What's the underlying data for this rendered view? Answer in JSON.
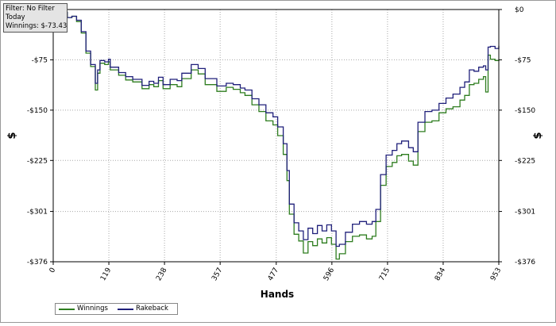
{
  "info": {
    "filter": "Filter: No Filter",
    "period": "Today",
    "winnings": "Winnings: $-73.43"
  },
  "chart_data": {
    "type": "line",
    "xlabel": "Hands",
    "ylabel_left": "$",
    "ylabel_right": "$",
    "xlim": [
      0,
      953
    ],
    "ylim": [
      -376,
      0
    ],
    "x_ticks": [
      0,
      119,
      238,
      357,
      477,
      596,
      715,
      834,
      953
    ],
    "y_ticks": [
      0,
      -75,
      -150,
      -225,
      -301,
      -376
    ],
    "y_tick_labels_left": [
      "-$75",
      "-$150",
      "-$225",
      "-$301",
      "-$376"
    ],
    "y_tick_labels_right": [
      "$0",
      "-$75",
      "-$150",
      "-$225",
      "-$301",
      "-$376"
    ],
    "grid": true,
    "legend_position": "bottom-left",
    "series": [
      {
        "name": "Winnings",
        "color": "#2e7d1f",
        "points": [
          [
            0,
            -3
          ],
          [
            10,
            -2
          ],
          [
            20,
            -4
          ],
          [
            30,
            -12
          ],
          [
            40,
            -10
          ],
          [
            50,
            -18
          ],
          [
            60,
            -35
          ],
          [
            70,
            -65
          ],
          [
            80,
            -85
          ],
          [
            90,
            -120
          ],
          [
            95,
            -95
          ],
          [
            100,
            -80
          ],
          [
            110,
            -82
          ],
          [
            118,
            -78
          ],
          [
            122,
            -90
          ],
          [
            140,
            -98
          ],
          [
            155,
            -105
          ],
          [
            170,
            -108
          ],
          [
            190,
            -118
          ],
          [
            205,
            -112
          ],
          [
            215,
            -115
          ],
          [
            225,
            -106
          ],
          [
            235,
            -118
          ],
          [
            250,
            -112
          ],
          [
            265,
            -115
          ],
          [
            275,
            -103
          ],
          [
            295,
            -90
          ],
          [
            310,
            -96
          ],
          [
            325,
            -112
          ],
          [
            350,
            -122
          ],
          [
            370,
            -116
          ],
          [
            385,
            -119
          ],
          [
            400,
            -124
          ],
          [
            410,
            -128
          ],
          [
            425,
            -142
          ],
          [
            440,
            -152
          ],
          [
            455,
            -166
          ],
          [
            470,
            -172
          ],
          [
            480,
            -188
          ],
          [
            492,
            -216
          ],
          [
            500,
            -255
          ],
          [
            505,
            -305
          ],
          [
            515,
            -335
          ],
          [
            525,
            -345
          ],
          [
            535,
            -363
          ],
          [
            545,
            -346
          ],
          [
            555,
            -352
          ],
          [
            565,
            -342
          ],
          [
            575,
            -348
          ],
          [
            585,
            -340
          ],
          [
            595,
            -350
          ],
          [
            605,
            -372
          ],
          [
            612,
            -364
          ],
          [
            625,
            -346
          ],
          [
            640,
            -338
          ],
          [
            655,
            -336
          ],
          [
            670,
            -342
          ],
          [
            682,
            -338
          ],
          [
            690,
            -316
          ],
          [
            700,
            -262
          ],
          [
            712,
            -234
          ],
          [
            725,
            -228
          ],
          [
            735,
            -218
          ],
          [
            745,
            -216
          ],
          [
            760,
            -226
          ],
          [
            770,
            -232
          ],
          [
            780,
            -182
          ],
          [
            795,
            -168
          ],
          [
            810,
            -166
          ],
          [
            825,
            -154
          ],
          [
            840,
            -148
          ],
          [
            855,
            -145
          ],
          [
            870,
            -135
          ],
          [
            880,
            -128
          ],
          [
            890,
            -112
          ],
          [
            900,
            -110
          ],
          [
            910,
            -104
          ],
          [
            920,
            -100
          ],
          [
            925,
            -123
          ],
          [
            930,
            -68
          ],
          [
            935,
            -74
          ],
          [
            945,
            -76
          ],
          [
            953,
            -74
          ]
        ]
      },
      {
        "name": "Rakeback",
        "color": "#1f1f7a",
        "points": [
          [
            0,
            -3
          ],
          [
            10,
            -2
          ],
          [
            20,
            -4
          ],
          [
            30,
            -12
          ],
          [
            40,
            -10
          ],
          [
            50,
            -16
          ],
          [
            60,
            -33
          ],
          [
            70,
            -62
          ],
          [
            80,
            -82
          ],
          [
            90,
            -110
          ],
          [
            95,
            -90
          ],
          [
            100,
            -76
          ],
          [
            110,
            -78
          ],
          [
            118,
            -74
          ],
          [
            122,
            -86
          ],
          [
            140,
            -94
          ],
          [
            155,
            -100
          ],
          [
            170,
            -104
          ],
          [
            190,
            -113
          ],
          [
            205,
            -107
          ],
          [
            215,
            -110
          ],
          [
            225,
            -101
          ],
          [
            235,
            -112
          ],
          [
            250,
            -104
          ],
          [
            265,
            -106
          ],
          [
            275,
            -95
          ],
          [
            295,
            -82
          ],
          [
            310,
            -88
          ],
          [
            325,
            -103
          ],
          [
            350,
            -114
          ],
          [
            370,
            -110
          ],
          [
            385,
            -112
          ],
          [
            400,
            -117
          ],
          [
            410,
            -120
          ],
          [
            425,
            -133
          ],
          [
            440,
            -142
          ],
          [
            455,
            -154
          ],
          [
            470,
            -160
          ],
          [
            480,
            -175
          ],
          [
            492,
            -200
          ],
          [
            500,
            -240
          ],
          [
            505,
            -290
          ],
          [
            515,
            -318
          ],
          [
            525,
            -330
          ],
          [
            535,
            -343
          ],
          [
            545,
            -326
          ],
          [
            555,
            -334
          ],
          [
            565,
            -322
          ],
          [
            575,
            -330
          ],
          [
            585,
            -321
          ],
          [
            595,
            -330
          ],
          [
            605,
            -353
          ],
          [
            612,
            -350
          ],
          [
            625,
            -332
          ],
          [
            640,
            -320
          ],
          [
            655,
            -316
          ],
          [
            670,
            -320
          ],
          [
            682,
            -316
          ],
          [
            690,
            -298
          ],
          [
            700,
            -246
          ],
          [
            712,
            -217
          ],
          [
            725,
            -210
          ],
          [
            735,
            -200
          ],
          [
            745,
            -196
          ],
          [
            760,
            -206
          ],
          [
            770,
            -212
          ],
          [
            780,
            -168
          ],
          [
            795,
            -152
          ],
          [
            810,
            -150
          ],
          [
            825,
            -140
          ],
          [
            840,
            -132
          ],
          [
            855,
            -126
          ],
          [
            870,
            -116
          ],
          [
            880,
            -108
          ],
          [
            890,
            -90
          ],
          [
            900,
            -92
          ],
          [
            910,
            -86
          ],
          [
            920,
            -84
          ],
          [
            925,
            -90
          ],
          [
            930,
            -56
          ],
          [
            935,
            -55
          ],
          [
            945,
            -58
          ],
          [
            953,
            -54
          ]
        ]
      }
    ]
  }
}
